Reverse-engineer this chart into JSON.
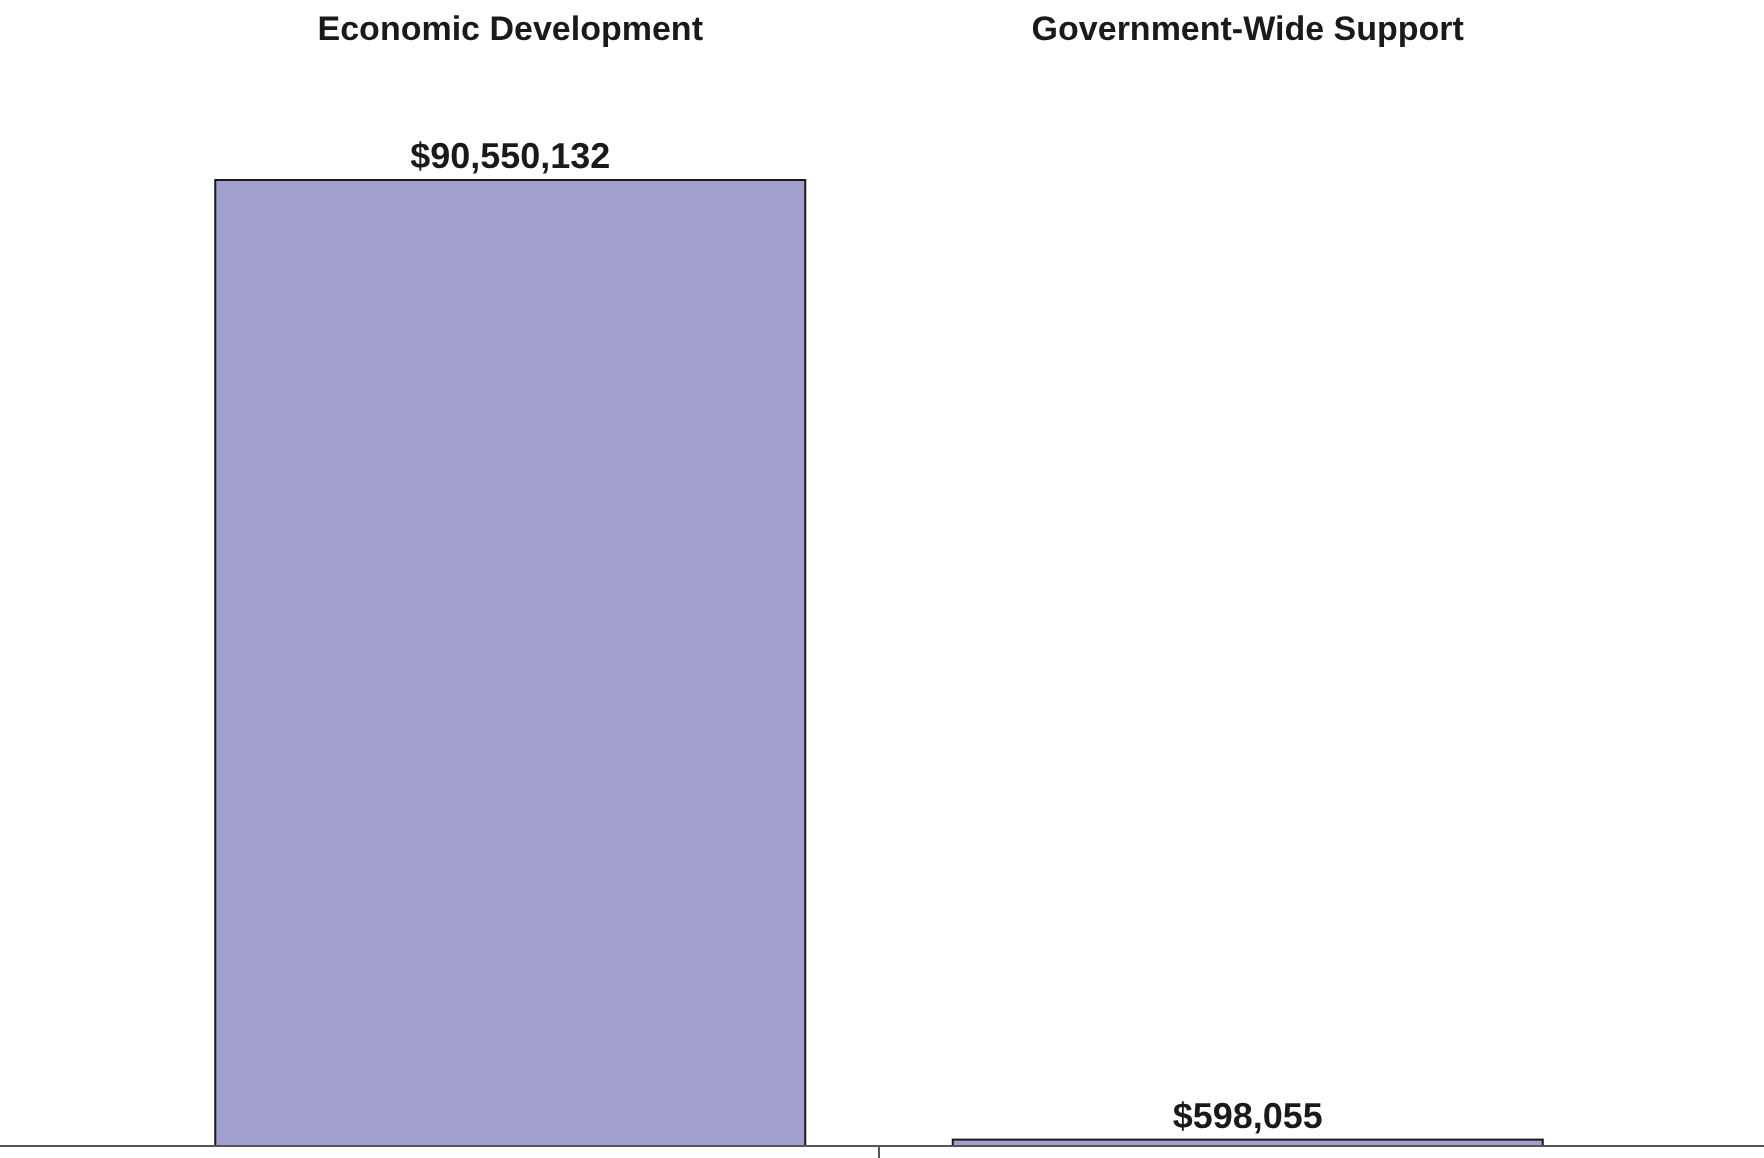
{
  "chart_data": {
    "type": "bar",
    "categories": [
      "Economic Development",
      "Government-Wide Support"
    ],
    "values": [
      90550132,
      598055
    ],
    "value_labels": [
      "$90,550,132",
      "$598,055"
    ],
    "color": "#a09fce"
  }
}
